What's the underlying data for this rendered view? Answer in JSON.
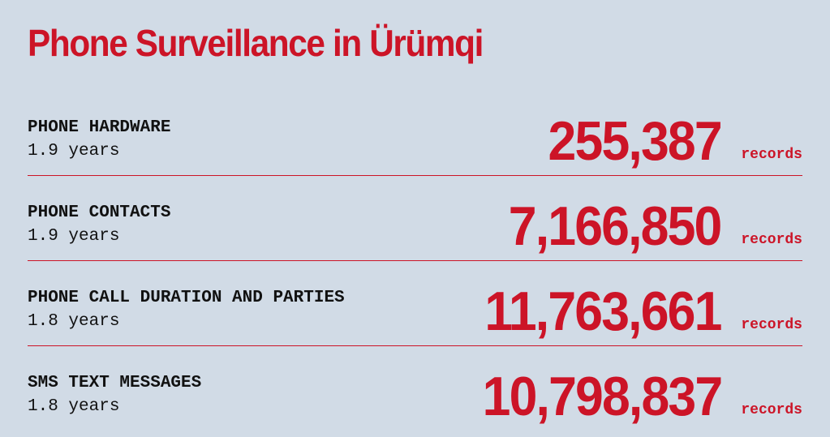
{
  "header": {
    "title": "Phone Surveillance in Ürümqi"
  },
  "rows": [
    {
      "label": "PHONE HARDWARE",
      "duration": "1.9 years",
      "count": "255,387",
      "unit": "records"
    },
    {
      "label": "PHONE CONTACTS",
      "duration": "1.9 years",
      "count": "7,166,850",
      "unit": "records"
    },
    {
      "label": "PHONE CALL DURATION AND PARTIES",
      "duration": "1.8 years",
      "count": "11,763,661",
      "unit": "records"
    },
    {
      "label": "SMS TEXT MESSAGES",
      "duration": "1.8 years",
      "count": "10,798,837",
      "unit": "records"
    }
  ]
}
